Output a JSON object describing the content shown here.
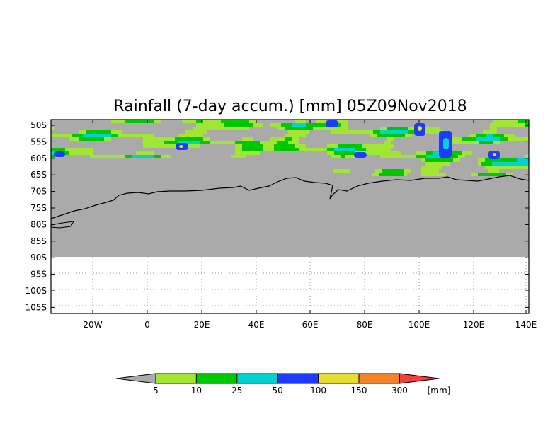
{
  "title": "Rainfall (7-day accum.) [mm] 05Z09Nov2018",
  "map": {
    "lat_labels": [
      "50S",
      "55S",
      "60S",
      "65S",
      "70S",
      "75S",
      "80S",
      "85S",
      "90S",
      "95S",
      "100S",
      "105S"
    ],
    "lon_labels": [
      "20W",
      "0",
      "20E",
      "40E",
      "60E",
      "80E",
      "100E",
      "120E",
      "140E"
    ],
    "background_color": "#aaaaaa",
    "coastline_color": "#000000",
    "grid_style": "dotted"
  },
  "legend": {
    "unit": "[mm]",
    "thresholds": [
      "5",
      "10",
      "25",
      "50",
      "100",
      "150",
      "300"
    ],
    "colors": [
      "#aaaaaa",
      "#a0e632",
      "#00c800",
      "#00d2d2",
      "#1e3cff",
      "#e6dc32",
      "#f08228",
      "#fa3c3c"
    ]
  },
  "rain_colors": {
    "light_green": "#a0e632",
    "green": "#00c800",
    "cyan": "#00d2d2",
    "blue": "#1e3cff",
    "yellow": "#e6dc32",
    "orange": "#f08228"
  }
}
